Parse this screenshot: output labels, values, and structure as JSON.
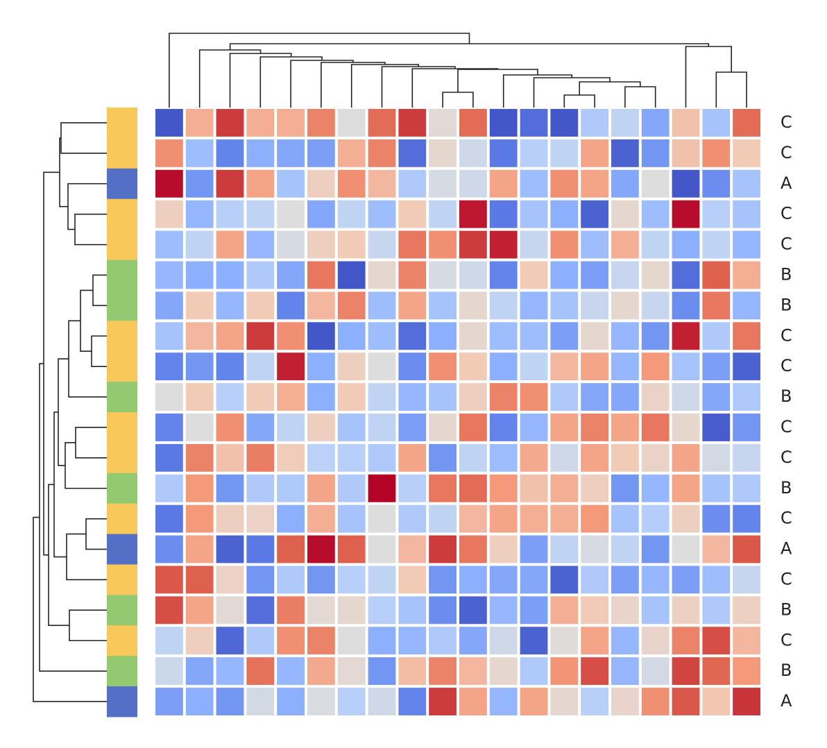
{
  "chart_data": {
    "type": "heatmap",
    "colormap": "coolwarm",
    "vmin": -2,
    "vmax": 2,
    "row_labels": [
      "C",
      "C",
      "A",
      "C",
      "C",
      "B",
      "B",
      "C",
      "C",
      "B",
      "C",
      "C",
      "B",
      "C",
      "A",
      "C",
      "B",
      "C",
      "B",
      "A"
    ],
    "group_colors": {
      "A": "#5470c6",
      "B": "#93c971",
      "C": "#f9c85b"
    },
    "values": [
      [
        -1.9,
        0.8,
        1.7,
        0.8,
        0.8,
        1.2,
        0,
        1.4,
        1.7,
        0.1,
        1.4,
        -1.9,
        -1.7,
        -1.9,
        -0.6,
        -0.4,
        -1.1,
        0.6,
        -0.7,
        1.4
      ],
      [
        1.1,
        -0.8,
        -1.5,
        -1.0,
        -1.1,
        -1.2,
        0.8,
        1.2,
        -1.7,
        0.2,
        -0.2,
        -1.6,
        -0.5,
        -0.4,
        0.9,
        -1.8,
        -1.3,
        0.6,
        1.1,
        0.5
      ],
      [
        1.95,
        -1.3,
        1.7,
        0.9,
        -0.7,
        0.4,
        1.1,
        0.7,
        -0.6,
        -0.1,
        -0.2,
        0.9,
        -0.8,
        1.1,
        0.9,
        -1.1,
        0,
        -1.9,
        -1.4,
        -0.7
      ],
      [
        0.4,
        -0.9,
        -0.5,
        -0.4,
        0,
        -1.1,
        -0.4,
        -0.8,
        0.5,
        -0.4,
        1.9,
        -1.6,
        -0.7,
        -1.0,
        -1.8,
        0.2,
        -0.8,
        1.95,
        -0.5,
        -0.7
      ],
      [
        -0.8,
        -0.4,
        0.9,
        -0.9,
        -0.1,
        0.4,
        0.5,
        -0.3,
        1.3,
        1.1,
        1.7,
        1.85,
        -0.3,
        1.1,
        -0.8,
        0.8,
        -0.4,
        -1.0,
        -0.4,
        -0.9
      ],
      [
        -0.9,
        -1.0,
        -1.0,
        -0.6,
        -1.1,
        1.3,
        -1.9,
        0.2,
        1.2,
        -0.1,
        -0.2,
        -1.5,
        0.5,
        -1.0,
        -1.2,
        -0.3,
        0.2,
        -1.7,
        1.5,
        0.8
      ],
      [
        -1.1,
        0.5,
        -0.9,
        0.5,
        -1.5,
        0.7,
        1.2,
        -0.8,
        0.9,
        -0.7,
        0.2,
        -0.4,
        -0.9,
        -0.7,
        -0.3,
        0.2,
        -0.3,
        -1.4,
        1.3,
        -0.9
      ],
      [
        -0.7,
        0.7,
        0.9,
        1.7,
        1.1,
        -1.9,
        -1.0,
        -0.8,
        -1.7,
        -1.0,
        0.2,
        -0.8,
        -0.8,
        -1.2,
        0.2,
        -0.9,
        -1.3,
        1.85,
        -0.6,
        1.3
      ],
      [
        -1.5,
        -1.3,
        -1.5,
        -0.4,
        1.85,
        -1.0,
        0.4,
        0,
        -1.4,
        1.1,
        0.5,
        -1.0,
        -0.4,
        0.7,
        0.9,
        -0.9,
        1.0,
        -0.7,
        -1.2,
        -1.8
      ],
      [
        0,
        0.5,
        -0.5,
        0.5,
        0.8,
        -1.0,
        0.5,
        -0.4,
        -0.9,
        -0.7,
        0.4,
        1.2,
        1.1,
        -0.6,
        -1.1,
        -1.1,
        0.3,
        -0.2,
        -1.1,
        -0.6
      ],
      [
        -1.5,
        0,
        1.1,
        -1.1,
        -0.4,
        0.4,
        -0.7,
        -0.4,
        -1.2,
        0.2,
        1.3,
        -1.5,
        -0.9,
        0.9,
        1.2,
        0.9,
        1.3,
        0.2,
        -1.85,
        -1.3
      ],
      [
        -1.6,
        1.2,
        0.6,
        1.25,
        0.45,
        -0.45,
        -0.5,
        -0.6,
        0.9,
        -1.3,
        -0.4,
        -0.8,
        0.85,
        -0.2,
        0.9,
        0.5,
        0.3,
        0.9,
        -0.15,
        -0.3
      ],
      [
        -0.6,
        1.0,
        -1.3,
        -0.6,
        -0.6,
        0.9,
        -0.6,
        2.0,
        -0.5,
        1.3,
        1.4,
        1.0,
        0.6,
        0.8,
        0.4,
        -1.3,
        -0.9,
        0.9,
        -0.7,
        -0.6
      ],
      [
        -1.6,
        1.0,
        0.4,
        0.3,
        -1.0,
        0.8,
        -0.7,
        0,
        -0.6,
        -0.4,
        0.7,
        0.9,
        0.8,
        0.8,
        1.0,
        -0.7,
        -0.55,
        0.4,
        -1.4,
        -1.5
      ],
      [
        -1.4,
        0.9,
        -1.8,
        -1.6,
        1.5,
        1.95,
        1.5,
        0,
        0.7,
        1.7,
        1.3,
        0.4,
        -1.2,
        -0.4,
        -0.1,
        -0.4,
        -1.3,
        0,
        0.7,
        1.55
      ],
      [
        1.55,
        1.5,
        0.3,
        -1.3,
        -0.6,
        -1.3,
        -0.5,
        -0.4,
        0.5,
        -1.3,
        -1.0,
        -1.1,
        -1.1,
        -1.8,
        -0.6,
        -1.2,
        -0.9,
        -1.2,
        -0.8,
        -0.3
      ],
      [
        1.6,
        0.9,
        0.1,
        -1.7,
        1.25,
        0.15,
        0.2,
        -0.5,
        -0.7,
        -1.4,
        -1.8,
        -0.9,
        -1.2,
        0.8,
        0.5,
        0.25,
        -0.7,
        0.35,
        -0.6,
        0.35
      ],
      [
        -0.4,
        0.4,
        -1.75,
        -0.6,
        1.1,
        1.2,
        0,
        -1.0,
        -0.9,
        -0.6,
        -1.1,
        -0.2,
        -1.8,
        0.05,
        0.9,
        -0.9,
        0.25,
        1.2,
        1.6,
        0.7
      ],
      [
        -0.25,
        -1.1,
        -0.9,
        1.35,
        -0.9,
        0.85,
        0.15,
        -1.3,
        0.65,
        1.2,
        0.7,
        0.2,
        -0.6,
        1.05,
        1.6,
        -0.9,
        -0.15,
        1.65,
        1.45,
        1.0
      ],
      [
        -1.2,
        -1.0,
        -1.3,
        -0.15,
        -1.0,
        -0.05,
        -0.5,
        -0.2,
        -1.5,
        1.7,
        0.9,
        -0.9,
        0.9,
        0.2,
        -0.5,
        0.25,
        1.1,
        1.55,
        0.55,
        1.75
      ]
    ]
  }
}
